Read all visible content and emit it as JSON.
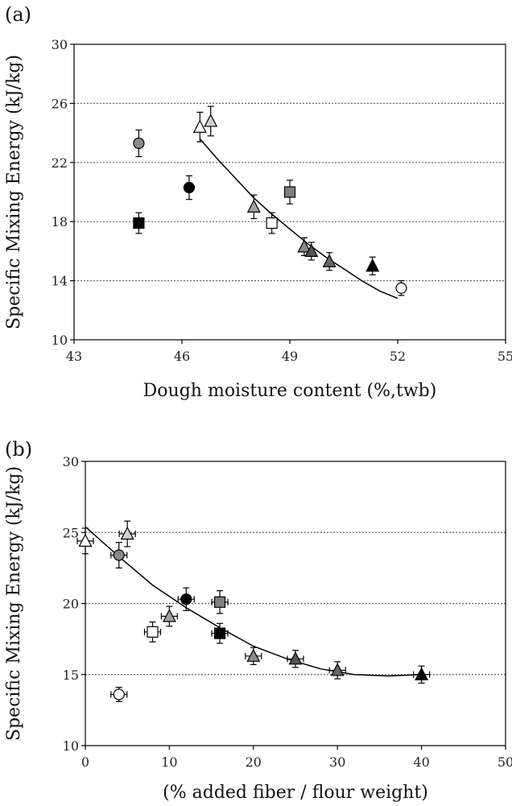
{
  "chart_data": [
    {
      "panel_label": "(a)",
      "type": "scatter",
      "xlabel": "Dough moisture content (%,twb)",
      "ylabel": "Specific Mixing Energy (kJ/kg)",
      "xlim": [
        43,
        55
      ],
      "ylim": [
        10,
        30
      ],
      "xticks": [
        "43",
        "46",
        "49",
        "52",
        "55"
      ],
      "yticks": [
        "10",
        "14",
        "18",
        "22",
        "26",
        "30"
      ],
      "gridlines_y": [
        14,
        18,
        22,
        26
      ],
      "points": [
        {
          "x": 44.8,
          "y": 17.9,
          "err": 0.7,
          "marker": "square",
          "fill": "#000000"
        },
        {
          "x": 44.8,
          "y": 23.3,
          "err": 0.9,
          "marker": "circle",
          "fill": "#8a8a8a"
        },
        {
          "x": 46.2,
          "y": 20.3,
          "err": 0.8,
          "marker": "circle",
          "fill": "#000000"
        },
        {
          "x": 46.5,
          "y": 24.4,
          "err": 1.0,
          "marker": "triangle",
          "fill": "#ffffff"
        },
        {
          "x": 46.8,
          "y": 24.8,
          "err": 1.0,
          "marker": "triangle",
          "fill": "#d0d0d0"
        },
        {
          "x": 48.0,
          "y": 19.0,
          "err": 0.8,
          "marker": "triangle",
          "fill": "#a0a0a0"
        },
        {
          "x": 48.5,
          "y": 17.9,
          "err": 0.7,
          "marker": "square",
          "fill": "#ffffff"
        },
        {
          "x": 49.0,
          "y": 20.0,
          "err": 0.8,
          "marker": "square",
          "fill": "#808080"
        },
        {
          "x": 49.4,
          "y": 16.3,
          "err": 0.6,
          "marker": "triangle",
          "fill": "#8a8a8a"
        },
        {
          "x": 49.6,
          "y": 16.0,
          "err": 0.6,
          "marker": "triangle",
          "fill": "#555555"
        },
        {
          "x": 50.1,
          "y": 15.3,
          "err": 0.6,
          "marker": "triangle",
          "fill": "#666666"
        },
        {
          "x": 51.3,
          "y": 15.0,
          "err": 0.6,
          "marker": "triangle",
          "fill": "#000000"
        },
        {
          "x": 52.1,
          "y": 13.5,
          "err": 0.5,
          "marker": "circle",
          "fill": "#ffffff"
        }
      ],
      "trendline": {
        "x": [
          46.5,
          47.0,
          47.5,
          48.0,
          48.5,
          49.0,
          49.5,
          50.0,
          50.5,
          51.0,
          51.5,
          52.0
        ],
        "y": [
          23.6,
          22.2,
          20.9,
          19.6,
          18.5,
          17.5,
          16.5,
          15.6,
          14.8,
          14.0,
          13.3,
          12.8
        ]
      }
    },
    {
      "panel_label": "(b)",
      "type": "scatter",
      "xlabel": "(% added fiber / flour weight)",
      "ylabel": "Specific Mixing Energy (kJ/kg)",
      "xlim": [
        0,
        50
      ],
      "ylim": [
        10,
        30
      ],
      "xticks": [
        "0",
        "10",
        "20",
        "30",
        "40",
        "50"
      ],
      "yticks": [
        "10",
        "15",
        "20",
        "25",
        "30"
      ],
      "gridlines_y": [
        15,
        20,
        25
      ],
      "points": [
        {
          "x": 0,
          "y": 24.4,
          "err": 0.9,
          "marker": "triangle",
          "fill": "#ffffff"
        },
        {
          "x": 4,
          "y": 23.4,
          "err": 0.9,
          "marker": "circle",
          "fill": "#8a8a8a"
        },
        {
          "x": 5,
          "y": 24.9,
          "err": 0.9,
          "marker": "triangle",
          "fill": "#d0d0d0"
        },
        {
          "x": 4,
          "y": 13.6,
          "err": 0.5,
          "marker": "circle",
          "fill": "#ffffff"
        },
        {
          "x": 8,
          "y": 18.0,
          "err": 0.7,
          "marker": "square",
          "fill": "#ffffff"
        },
        {
          "x": 10,
          "y": 19.1,
          "err": 0.7,
          "marker": "triangle",
          "fill": "#a0a0a0"
        },
        {
          "x": 12,
          "y": 20.3,
          "err": 0.8,
          "marker": "circle",
          "fill": "#000000"
        },
        {
          "x": 16,
          "y": 20.1,
          "err": 0.8,
          "marker": "square",
          "fill": "#808080"
        },
        {
          "x": 16,
          "y": 17.9,
          "err": 0.7,
          "marker": "square",
          "fill": "#000000"
        },
        {
          "x": 20,
          "y": 16.3,
          "err": 0.6,
          "marker": "triangle",
          "fill": "#8a8a8a"
        },
        {
          "x": 25,
          "y": 16.1,
          "err": 0.6,
          "marker": "triangle",
          "fill": "#555555"
        },
        {
          "x": 30,
          "y": 15.3,
          "err": 0.6,
          "marker": "triangle",
          "fill": "#666666"
        },
        {
          "x": 40,
          "y": 15.0,
          "err": 0.6,
          "marker": "triangle",
          "fill": "#000000"
        }
      ],
      "trendline": {
        "x": [
          0,
          4,
          8,
          12,
          16,
          20,
          24,
          28,
          32,
          36,
          40
        ],
        "y": [
          25.4,
          23.3,
          21.3,
          19.7,
          18.3,
          17.0,
          16.1,
          15.4,
          15.0,
          14.9,
          15.0
        ]
      }
    }
  ]
}
